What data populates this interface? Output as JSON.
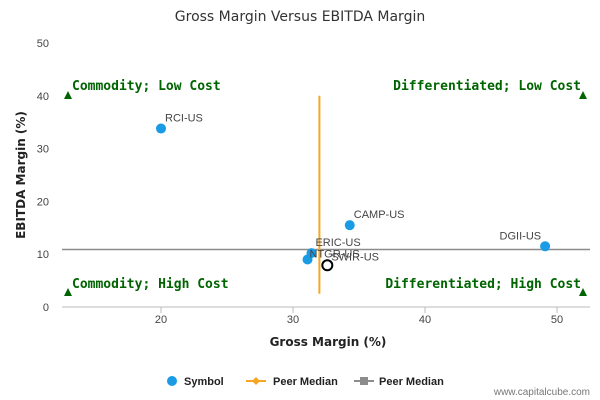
{
  "chart_data": {
    "type": "scatter",
    "title": "Gross Margin Versus EBITDA Margin",
    "xlabel": "Gross Margin (%)",
    "ylabel": "EBITDA Margin (%)",
    "xlim": [
      12.5,
      52.5
    ],
    "ylim": [
      0,
      50
    ],
    "xticks": [
      20,
      30,
      40,
      50
    ],
    "yticks": [
      0,
      10,
      20,
      30,
      40,
      50
    ],
    "points": [
      {
        "label": "RCI-US",
        "x": 20.0,
        "y": 33.8
      },
      {
        "label": "CAMP-US",
        "x": 34.3,
        "y": 15.5
      },
      {
        "label": "DGII-US",
        "x": 49.1,
        "y": 11.5
      },
      {
        "label": "ERIC-US",
        "x": 31.4,
        "y": 10.2
      },
      {
        "label": "NTGR-US",
        "x": 31.1,
        "y": 9.0
      }
    ],
    "highlight": {
      "label": "SWIR-US",
      "x": 32.6,
      "y": 7.9
    },
    "peer_median_x": 32.0,
    "peer_median_x_range": [
      2.5,
      40.0
    ],
    "peer_median_y": 10.9,
    "quadrants": {
      "top_left": "Commodity; Low Cost",
      "top_right": "Differentiated; Low Cost",
      "bottom_left": "Commodity; High Cost",
      "bottom_right": "Differentiated; High Cost"
    },
    "legend": [
      {
        "name": "Symbol",
        "marker": "circle",
        "color": "#1a9be6"
      },
      {
        "name": "Peer Median",
        "marker": "diamond",
        "color": "#f5a623"
      },
      {
        "name": "Peer Median",
        "marker": "square",
        "color": "#8c8c8c"
      }
    ],
    "colors": {
      "point": "#1a9be6",
      "median_v": "#f5a623",
      "median_h": "#8c8c8c",
      "quad": "#006400"
    }
  },
  "credit": "www.capitalcube.com"
}
